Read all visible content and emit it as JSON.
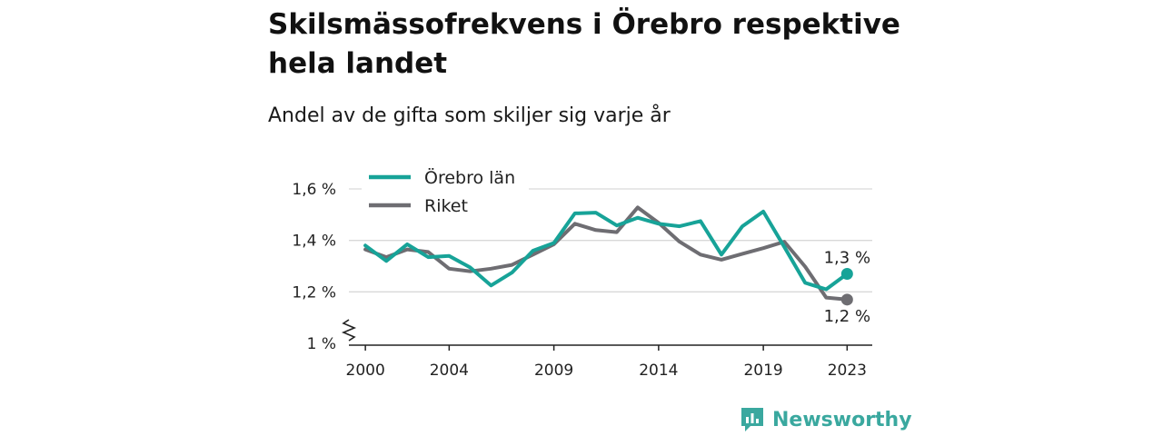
{
  "title": "Skilsmässofrekvens i Örebro respektive hela landet",
  "subtitle": "Andel av de gifta som skiljer sig varje år",
  "brand": {
    "name": "Newsworthy",
    "icon": "newsworthy-logo-icon",
    "color": "#3aa89f"
  },
  "chart_data": {
    "type": "line",
    "x": [
      2000,
      2001,
      2002,
      2003,
      2004,
      2005,
      2006,
      2007,
      2008,
      2009,
      2010,
      2011,
      2012,
      2013,
      2014,
      2015,
      2016,
      2017,
      2018,
      2019,
      2020,
      2021,
      2022,
      2023
    ],
    "x_ticks": [
      2000,
      2004,
      2009,
      2014,
      2019,
      2023
    ],
    "x_tick_labels": [
      "2000",
      "2004",
      "2009",
      "2014",
      "2019",
      "2023"
    ],
    "y_ticks": [
      1.0,
      1.2,
      1.4,
      1.6
    ],
    "y_tick_labels": [
      "1 %",
      "1,2 %",
      "1,4 %",
      "1,6 %"
    ],
    "ylim": [
      1.0,
      1.65
    ],
    "y_axis_break": true,
    "grid": true,
    "legend_position": "top-left",
    "series": [
      {
        "name": "Örebro län",
        "color": "#17a398",
        "values": [
          1.38,
          1.32,
          1.385,
          1.335,
          1.34,
          1.295,
          1.225,
          1.275,
          1.36,
          1.39,
          1.505,
          1.508,
          1.458,
          1.488,
          1.465,
          1.455,
          1.475,
          1.345,
          1.455,
          1.512,
          1.375,
          1.235,
          1.21,
          1.27
        ],
        "end_label": "1,3 %"
      },
      {
        "name": "Riket",
        "color": "#6e6d72",
        "values": [
          1.365,
          1.335,
          1.365,
          1.355,
          1.29,
          1.28,
          1.29,
          1.305,
          1.345,
          1.385,
          1.465,
          1.44,
          1.432,
          1.528,
          1.468,
          1.395,
          1.345,
          1.325,
          1.348,
          1.37,
          1.395,
          1.298,
          1.178,
          1.17
        ],
        "end_label": "1,2 %"
      }
    ]
  }
}
